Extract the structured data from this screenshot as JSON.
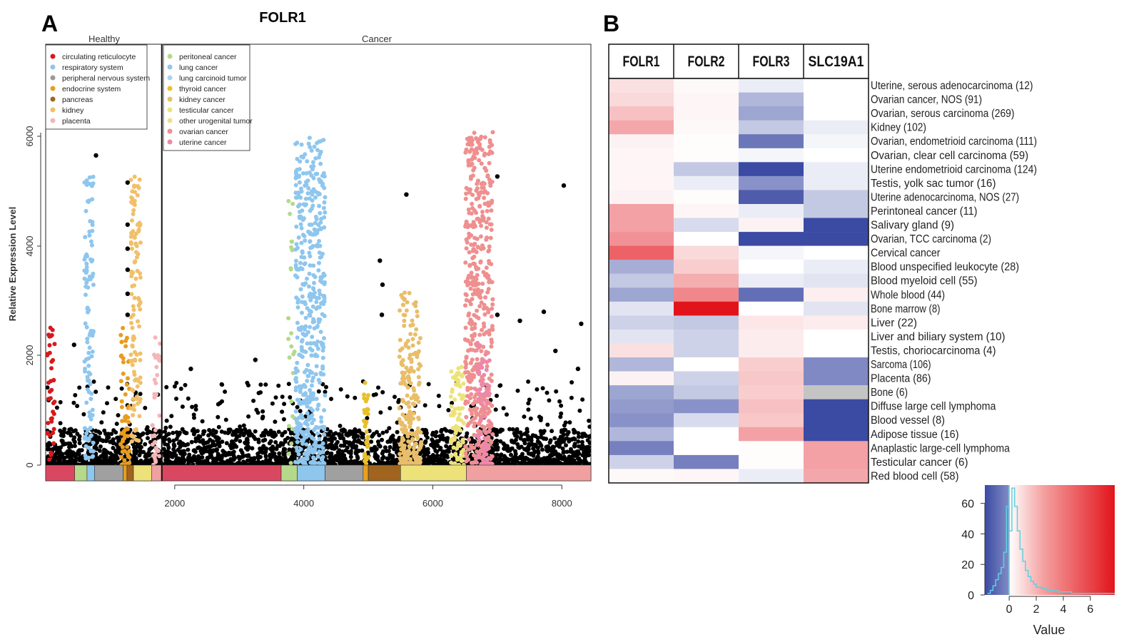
{
  "panel_a": {
    "letter": "A",
    "title": "FOLR1",
    "section_healthy": "Healthy",
    "section_cancer": "Cancer",
    "ylabel": "Relative Expression Level",
    "y_ticks": [
      "0",
      "2000",
      "4000",
      "6000"
    ],
    "x_ticks": [
      "2000",
      "4000",
      "6000",
      "8000"
    ]
  },
  "panel_b": {
    "letter": "B",
    "colorkey_xlabel": "Value",
    "colorkey_x_ticks": [
      "0",
      "2",
      "4",
      "6"
    ],
    "colorkey_y_ticks": [
      "0",
      "20",
      "40",
      "60"
    ]
  },
  "chart_data": [
    {
      "type": "scatter",
      "title": "FOLR1",
      "xlabel": "",
      "ylabel": "Relative Expression Level",
      "xlim": [
        0,
        8450
      ],
      "ylim": [
        0,
        7000
      ],
      "healthy_cancer_divider_x": 1800,
      "legend_healthy": [
        {
          "name": "circulating reticulocyte",
          "color": "#d7191c"
        },
        {
          "name": "respiratory system",
          "color": "#8ec6ee"
        },
        {
          "name": "peripheral nervous system",
          "color": "#9a9a9a"
        },
        {
          "name": "endocrine system",
          "color": "#e89c1e"
        },
        {
          "name": "pancreas",
          "color": "#a0641e"
        },
        {
          "name": "kidney",
          "color": "#f0c06a"
        },
        {
          "name": "placenta",
          "color": "#f4b6b6"
        }
      ],
      "legend_cancer": [
        {
          "name": "peritoneal cancer",
          "color": "#b5d98a"
        },
        {
          "name": "lung cancer",
          "color": "#8ec6ee"
        },
        {
          "name": "lung carcinoid tumor",
          "color": "#a8d4f2"
        },
        {
          "name": "thyroid cancer",
          "color": "#e8c02a"
        },
        {
          "name": "kidney cancer",
          "color": "#e8be6a"
        },
        {
          "name": "testicular cancer",
          "color": "#ede27a"
        },
        {
          "name": "other urogenital tumor",
          "color": "#f2dc8c"
        },
        {
          "name": "ovarian cancer",
          "color": "#ef8f8f"
        },
        {
          "name": "uterine cancer",
          "color": "#ec88a8"
        }
      ],
      "category_bar": [
        {
          "start": 0,
          "end": 450,
          "color": "#d94860"
        },
        {
          "start": 450,
          "end": 640,
          "color": "#b5d98a"
        },
        {
          "start": 640,
          "end": 760,
          "color": "#8ec6ee"
        },
        {
          "start": 760,
          "end": 1200,
          "color": "#a0a0a0"
        },
        {
          "start": 1200,
          "end": 1260,
          "color": "#e89c1e"
        },
        {
          "start": 1260,
          "end": 1360,
          "color": "#a0641e"
        },
        {
          "start": 1360,
          "end": 1640,
          "color": "#ede27a"
        },
        {
          "start": 1640,
          "end": 1800,
          "color": "#f0a0a0"
        },
        {
          "start": 1800,
          "end": 3650,
          "color": "#d94860"
        },
        {
          "start": 3650,
          "end": 3900,
          "color": "#b5d98a"
        },
        {
          "start": 3900,
          "end": 4330,
          "color": "#8ec6ee"
        },
        {
          "start": 4330,
          "end": 4920,
          "color": "#a0a0a0"
        },
        {
          "start": 4920,
          "end": 5000,
          "color": "#e8a020"
        },
        {
          "start": 5000,
          "end": 5500,
          "color": "#a0641e"
        },
        {
          "start": 5500,
          "end": 6520,
          "color": "#ede27a"
        },
        {
          "start": 6520,
          "end": 8450,
          "color": "#f0a0a0"
        }
      ],
      "series": [
        {
          "color": "#d7191c",
          "x_range": [
            20,
            140
          ],
          "n": 40,
          "max": 2350,
          "low": 0,
          "skew": 1.4
        },
        {
          "color": "#8ec6ee",
          "x_range": [
            600,
            740
          ],
          "n": 110,
          "max": 4800,
          "low": 100,
          "skew": 1.3
        },
        {
          "color": "#e89c1e",
          "x_range": [
            1160,
            1300
          ],
          "n": 60,
          "max": 2300,
          "low": 0,
          "skew": 1.5
        },
        {
          "color": "#f0c06a",
          "x_range": [
            1320,
            1470
          ],
          "n": 120,
          "max": 4850,
          "low": 300,
          "skew": 0.9
        },
        {
          "color": "#f4b6b6",
          "x_range": [
            1640,
            1780
          ],
          "n": 35,
          "max": 2200,
          "low": 0,
          "skew": 1.5
        },
        {
          "color": "#b5d98a",
          "x_range": [
            3760,
            3860
          ],
          "n": 25,
          "max": 4800,
          "low": 0,
          "skew": 1.2
        },
        {
          "color": "#8ec6ee",
          "x_range": [
            3870,
            4330
          ],
          "n": 480,
          "max": 5450,
          "low": 0,
          "skew": 1.3
        },
        {
          "color": "#e8c02a",
          "x_range": [
            4930,
            5000
          ],
          "n": 35,
          "max": 1400,
          "low": 0,
          "skew": 1.3
        },
        {
          "color": "#e8be6a",
          "x_range": [
            5480,
            5820
          ],
          "n": 230,
          "max": 2900,
          "low": 0,
          "skew": 1.8
        },
        {
          "color": "#ede27a",
          "x_range": [
            6280,
            6480
          ],
          "n": 90,
          "max": 1650,
          "low": 0,
          "skew": 1.4
        },
        {
          "color": "#ef8f8f",
          "x_range": [
            6500,
            6930
          ],
          "n": 480,
          "max": 5600,
          "low": 0,
          "skew": 1.1
        },
        {
          "color": "#ec88a8",
          "x_range": [
            6680,
            6900
          ],
          "n": 80,
          "max": 2100,
          "low": 0,
          "skew": 1.5
        }
      ],
      "background_series": {
        "color": "#000000",
        "x_range": [
          0,
          8450
        ],
        "n": 2600,
        "typical_max": 600,
        "max": 1400
      },
      "notable_points": [
        {
          "x": 780,
          "y": 5150
        },
        {
          "x": 440,
          "y": 2000
        },
        {
          "x": 1270,
          "y": 4700
        },
        {
          "x": 1270,
          "y": 4000
        },
        {
          "x": 1270,
          "y": 3600
        },
        {
          "x": 1270,
          "y": 3250
        },
        {
          "x": 1270,
          "y": 2850
        },
        {
          "x": 1270,
          "y": 2500
        },
        {
          "x": 2250,
          "y": 1600
        },
        {
          "x": 3250,
          "y": 1750
        },
        {
          "x": 5180,
          "y": 3400
        },
        {
          "x": 5220,
          "y": 3000
        },
        {
          "x": 5210,
          "y": 2500
        },
        {
          "x": 5590,
          "y": 4500
        },
        {
          "x": 7000,
          "y": 4800
        },
        {
          "x": 8030,
          "y": 4650
        },
        {
          "x": 7000,
          "y": 2500
        },
        {
          "x": 7350,
          "y": 2400
        },
        {
          "x": 7720,
          "y": 2550
        },
        {
          "x": 8300,
          "y": 2350
        },
        {
          "x": 7900,
          "y": 1900
        },
        {
          "x": 8250,
          "y": 1600
        }
      ]
    },
    {
      "type": "heatmap",
      "columns": [
        "FOLR1",
        "FOLR2",
        "FOLR3",
        "SLC19A1"
      ],
      "rows": [
        "Uterine, serous adenocarcinoma (12)",
        "Ovarian cancer, NOS (91)",
        "Ovarian, serous carcinoma (269)",
        "Kidney (102)",
        "Ovarian, endometrioid carcinoma (111)",
        "Ovarian, clear cell carcinoma (59)",
        "Uterine endometrioid carcinoma (124)",
        "Testis, yolk sac tumor (16)",
        "Uterine adenocarcinoma, NOS (27)",
        "Perintoneal cancer (11)",
        "Salivary gland (9)",
        "Ovarian, TCC carcinoma (2)",
        "Cervical cancer",
        "Blood unspecified leukocyte (28)",
        "Blood myeloid cell (55)",
        "Whole blood (44)",
        "Bone marrow (8)",
        "Liver (22)",
        "Liver and biliary system (10)",
        "Testis, choriocarcinoma (4)",
        "Sarcoma (106)",
        "Placenta (86)",
        "Bone (6)",
        "Diffuse large cell lymphoma",
        "Blood vessel (8)",
        "Adipose tissue (16)",
        "Anaplastic large-cell lymphoma",
        "Testicular cancer (6)",
        "Red blood cell (58)"
      ],
      "values": [
        [
          1.0,
          0.2,
          -0.2,
          0.0
        ],
        [
          1.2,
          0.3,
          -0.8,
          0.0
        ],
        [
          2.0,
          0.3,
          -1.0,
          0.0
        ],
        [
          2.8,
          0.2,
          -0.6,
          -0.2
        ],
        [
          0.4,
          0.1,
          -1.5,
          -0.1
        ],
        [
          0.3,
          0.1,
          -0.1,
          0.0
        ],
        [
          0.3,
          -0.6,
          -2.4,
          -0.2
        ],
        [
          0.3,
          -0.2,
          -1.2,
          -0.2
        ],
        [
          0.4,
          0.1,
          -1.8,
          -0.6
        ],
        [
          3.0,
          0.3,
          -0.2,
          -0.6
        ],
        [
          3.0,
          -0.4,
          0.4,
          -2.4
        ],
        [
          3.5,
          0.0,
          -2.8,
          -2.8
        ],
        [
          5.0,
          1.2,
          -0.1,
          0.0
        ],
        [
          -0.9,
          1.6,
          0.0,
          -0.2
        ],
        [
          -0.6,
          2.6,
          -0.2,
          -0.3
        ],
        [
          -1.0,
          3.8,
          -1.6,
          0.5
        ],
        [
          -0.3,
          7.5,
          0.0,
          -0.3
        ],
        [
          -0.5,
          -0.6,
          0.8,
          0.6
        ],
        [
          -0.3,
          -0.5,
          0.6,
          0.0
        ],
        [
          1.0,
          -0.5,
          0.6,
          0.0
        ],
        [
          -0.8,
          0.0,
          1.6,
          -1.3
        ],
        [
          0.4,
          -0.5,
          1.8,
          -1.3
        ],
        [
          -1.0,
          -0.6,
          1.6,
          null
        ],
        [
          -1.1,
          -1.2,
          2.0,
          -2.6
        ],
        [
          -1.2,
          -0.4,
          1.8,
          -2.6
        ],
        [
          -0.8,
          0.0,
          3.0,
          -2.6
        ],
        [
          -1.4,
          0.0,
          0.1,
          3.0
        ],
        [
          -0.5,
          -1.4,
          0.1,
          3.0
        ],
        [
          0.2,
          0.3,
          -0.2,
          2.8
        ]
      ],
      "color_scale": {
        "min": -2.0,
        "mid": 0.0,
        "max": 7.5,
        "low_color": "#3b4aa3",
        "mid_color": "#ffffff",
        "high_color": "#e2141b",
        "na_color": "#c4c4c4"
      }
    },
    {
      "type": "line",
      "title": "",
      "xlabel": "Value",
      "ylabel": "",
      "xlim": [
        -1.8,
        7.8
      ],
      "ylim": [
        0,
        72
      ],
      "x_ticks": [
        0,
        2,
        4,
        6
      ],
      "y_ticks": [
        0,
        20,
        40,
        60
      ],
      "histogram": [
        {
          "x": -1.6,
          "y": 1
        },
        {
          "x": -1.4,
          "y": 3
        },
        {
          "x": -1.2,
          "y": 6
        },
        {
          "x": -1.0,
          "y": 10
        },
        {
          "x": -0.8,
          "y": 14
        },
        {
          "x": -0.6,
          "y": 18
        },
        {
          "x": -0.4,
          "y": 28
        },
        {
          "x": -0.2,
          "y": 58
        },
        {
          "x": 0.0,
          "y": 42
        },
        {
          "x": 0.2,
          "y": 70
        },
        {
          "x": 0.4,
          "y": 58
        },
        {
          "x": 0.6,
          "y": 42
        },
        {
          "x": 0.8,
          "y": 30
        },
        {
          "x": 1.0,
          "y": 22
        },
        {
          "x": 1.2,
          "y": 16
        },
        {
          "x": 1.4,
          "y": 12
        },
        {
          "x": 1.6,
          "y": 9
        },
        {
          "x": 1.8,
          "y": 7
        },
        {
          "x": 2.0,
          "y": 5
        },
        {
          "x": 2.4,
          "y": 4
        },
        {
          "x": 2.8,
          "y": 3
        },
        {
          "x": 3.2,
          "y": 3
        },
        {
          "x": 3.6,
          "y": 2
        },
        {
          "x": 4.0,
          "y": 2
        },
        {
          "x": 4.6,
          "y": 1
        },
        {
          "x": 5.4,
          "y": 1
        },
        {
          "x": 6.2,
          "y": 1
        },
        {
          "x": 7.2,
          "y": 1
        }
      ],
      "line_color": "#5fd0e0"
    }
  ]
}
